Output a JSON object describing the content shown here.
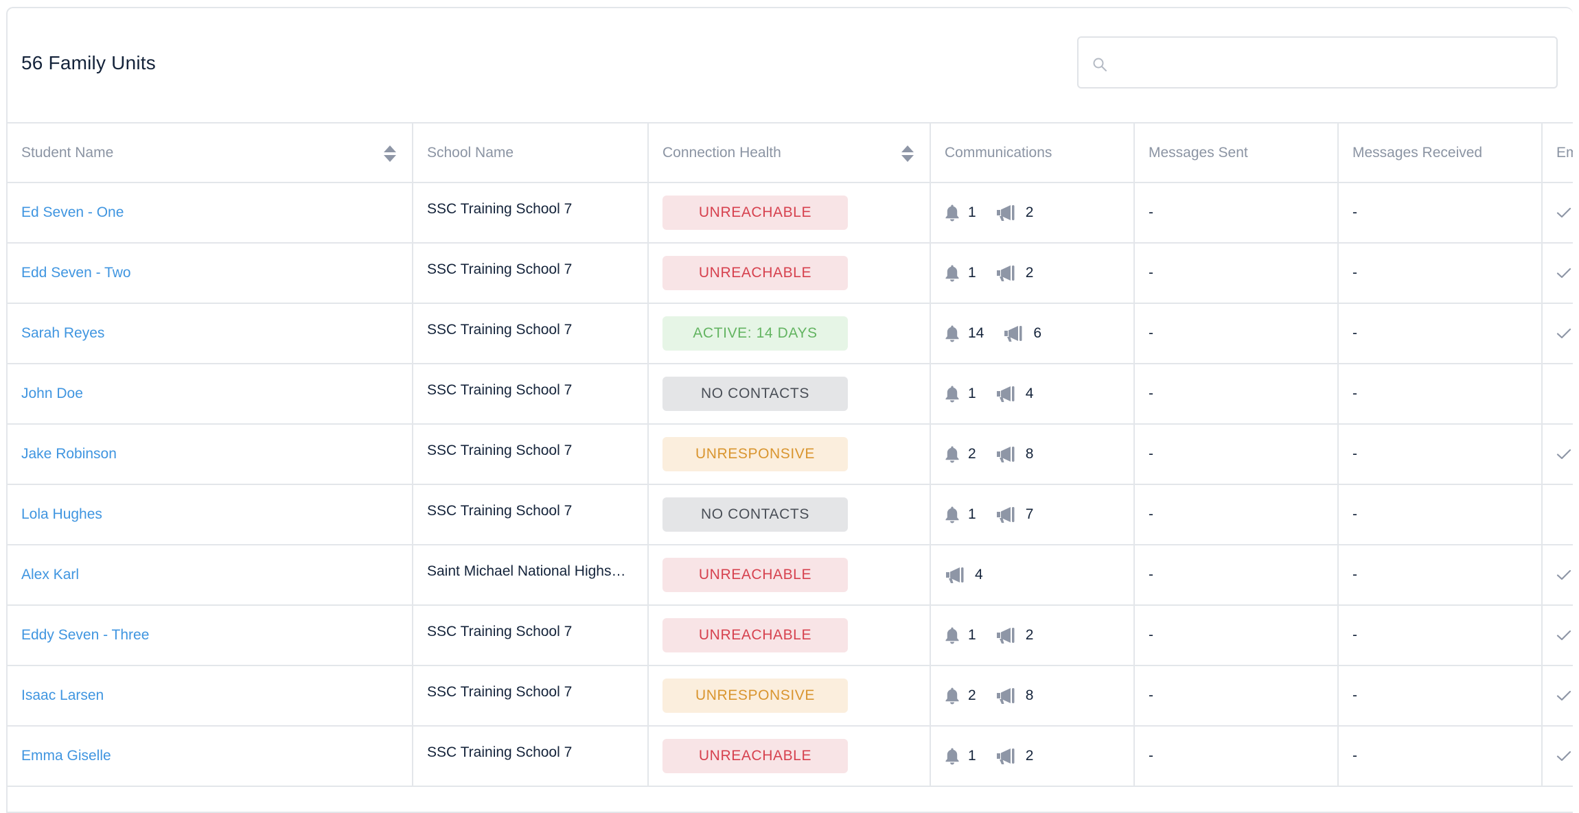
{
  "header": {
    "title": "56 Family Units",
    "search_placeholder": ""
  },
  "columns": [
    "Student Name",
    "School Name",
    "Connection Health",
    "Communications",
    "Messages Sent",
    "Messages Received",
    "Em"
  ],
  "rows": [
    {
      "student": "Ed Seven - One",
      "school": "SSC Training School 7",
      "health": "UNREACHABLE",
      "health_type": "unreachable",
      "bell": "1",
      "megaphone": "2",
      "sent": "-",
      "received": "-",
      "email_check": true
    },
    {
      "student": "Edd Seven - Two",
      "school": "SSC Training School 7",
      "health": "UNREACHABLE",
      "health_type": "unreachable",
      "bell": "1",
      "megaphone": "2",
      "sent": "-",
      "received": "-",
      "email_check": true
    },
    {
      "student": "Sarah Reyes",
      "school": "SSC Training School 7",
      "health": "ACTIVE: 14 DAYS",
      "health_type": "active",
      "bell": "14",
      "megaphone": "6",
      "sent": "-",
      "received": "-",
      "email_check": true
    },
    {
      "student": "John Doe",
      "school": "SSC Training School 7",
      "health": "NO CONTACTS",
      "health_type": "nocontacts",
      "bell": "1",
      "megaphone": "4",
      "sent": "-",
      "received": "-",
      "email_check": false
    },
    {
      "student": "Jake Robinson",
      "school": "SSC Training School 7",
      "health": "UNRESPONSIVE",
      "health_type": "unresponsive",
      "bell": "2",
      "megaphone": "8",
      "sent": "-",
      "received": "-",
      "email_check": true
    },
    {
      "student": "Lola Hughes",
      "school": "SSC Training School 7",
      "health": "NO CONTACTS",
      "health_type": "nocontacts",
      "bell": "1",
      "megaphone": "7",
      "sent": "-",
      "received": "-",
      "email_check": false
    },
    {
      "student": "Alex Karl",
      "school": "Saint Michael National Highs…",
      "health": "UNREACHABLE",
      "health_type": "unreachable",
      "bell": null,
      "megaphone": "4",
      "sent": "-",
      "received": "-",
      "email_check": true
    },
    {
      "student": "Eddy Seven - Three",
      "school": "SSC Training School 7",
      "health": "UNREACHABLE",
      "health_type": "unreachable",
      "bell": "1",
      "megaphone": "2",
      "sent": "-",
      "received": "-",
      "email_check": true
    },
    {
      "student": "Isaac Larsen",
      "school": "SSC Training School 7",
      "health": "UNRESPONSIVE",
      "health_type": "unresponsive",
      "bell": "2",
      "megaphone": "8",
      "sent": "-",
      "received": "-",
      "email_check": true
    },
    {
      "student": "Emma Giselle",
      "school": "SSC Training School 7",
      "health": "UNREACHABLE",
      "health_type": "unreachable",
      "bell": "1",
      "megaphone": "2",
      "sent": "-",
      "received": "-",
      "email_check": true
    }
  ],
  "icons": {
    "search": "search-icon",
    "sort": "sort-icon",
    "bell": "bell-icon",
    "megaphone": "megaphone-icon",
    "check": "check-icon"
  },
  "colors": {
    "link": "#3f95e0",
    "unreachable": "#d6414e",
    "active": "#63b461",
    "nocontacts": "#4a4f57",
    "unresponsive": "#d9952f",
    "icon_gray": "#8e96a6"
  }
}
